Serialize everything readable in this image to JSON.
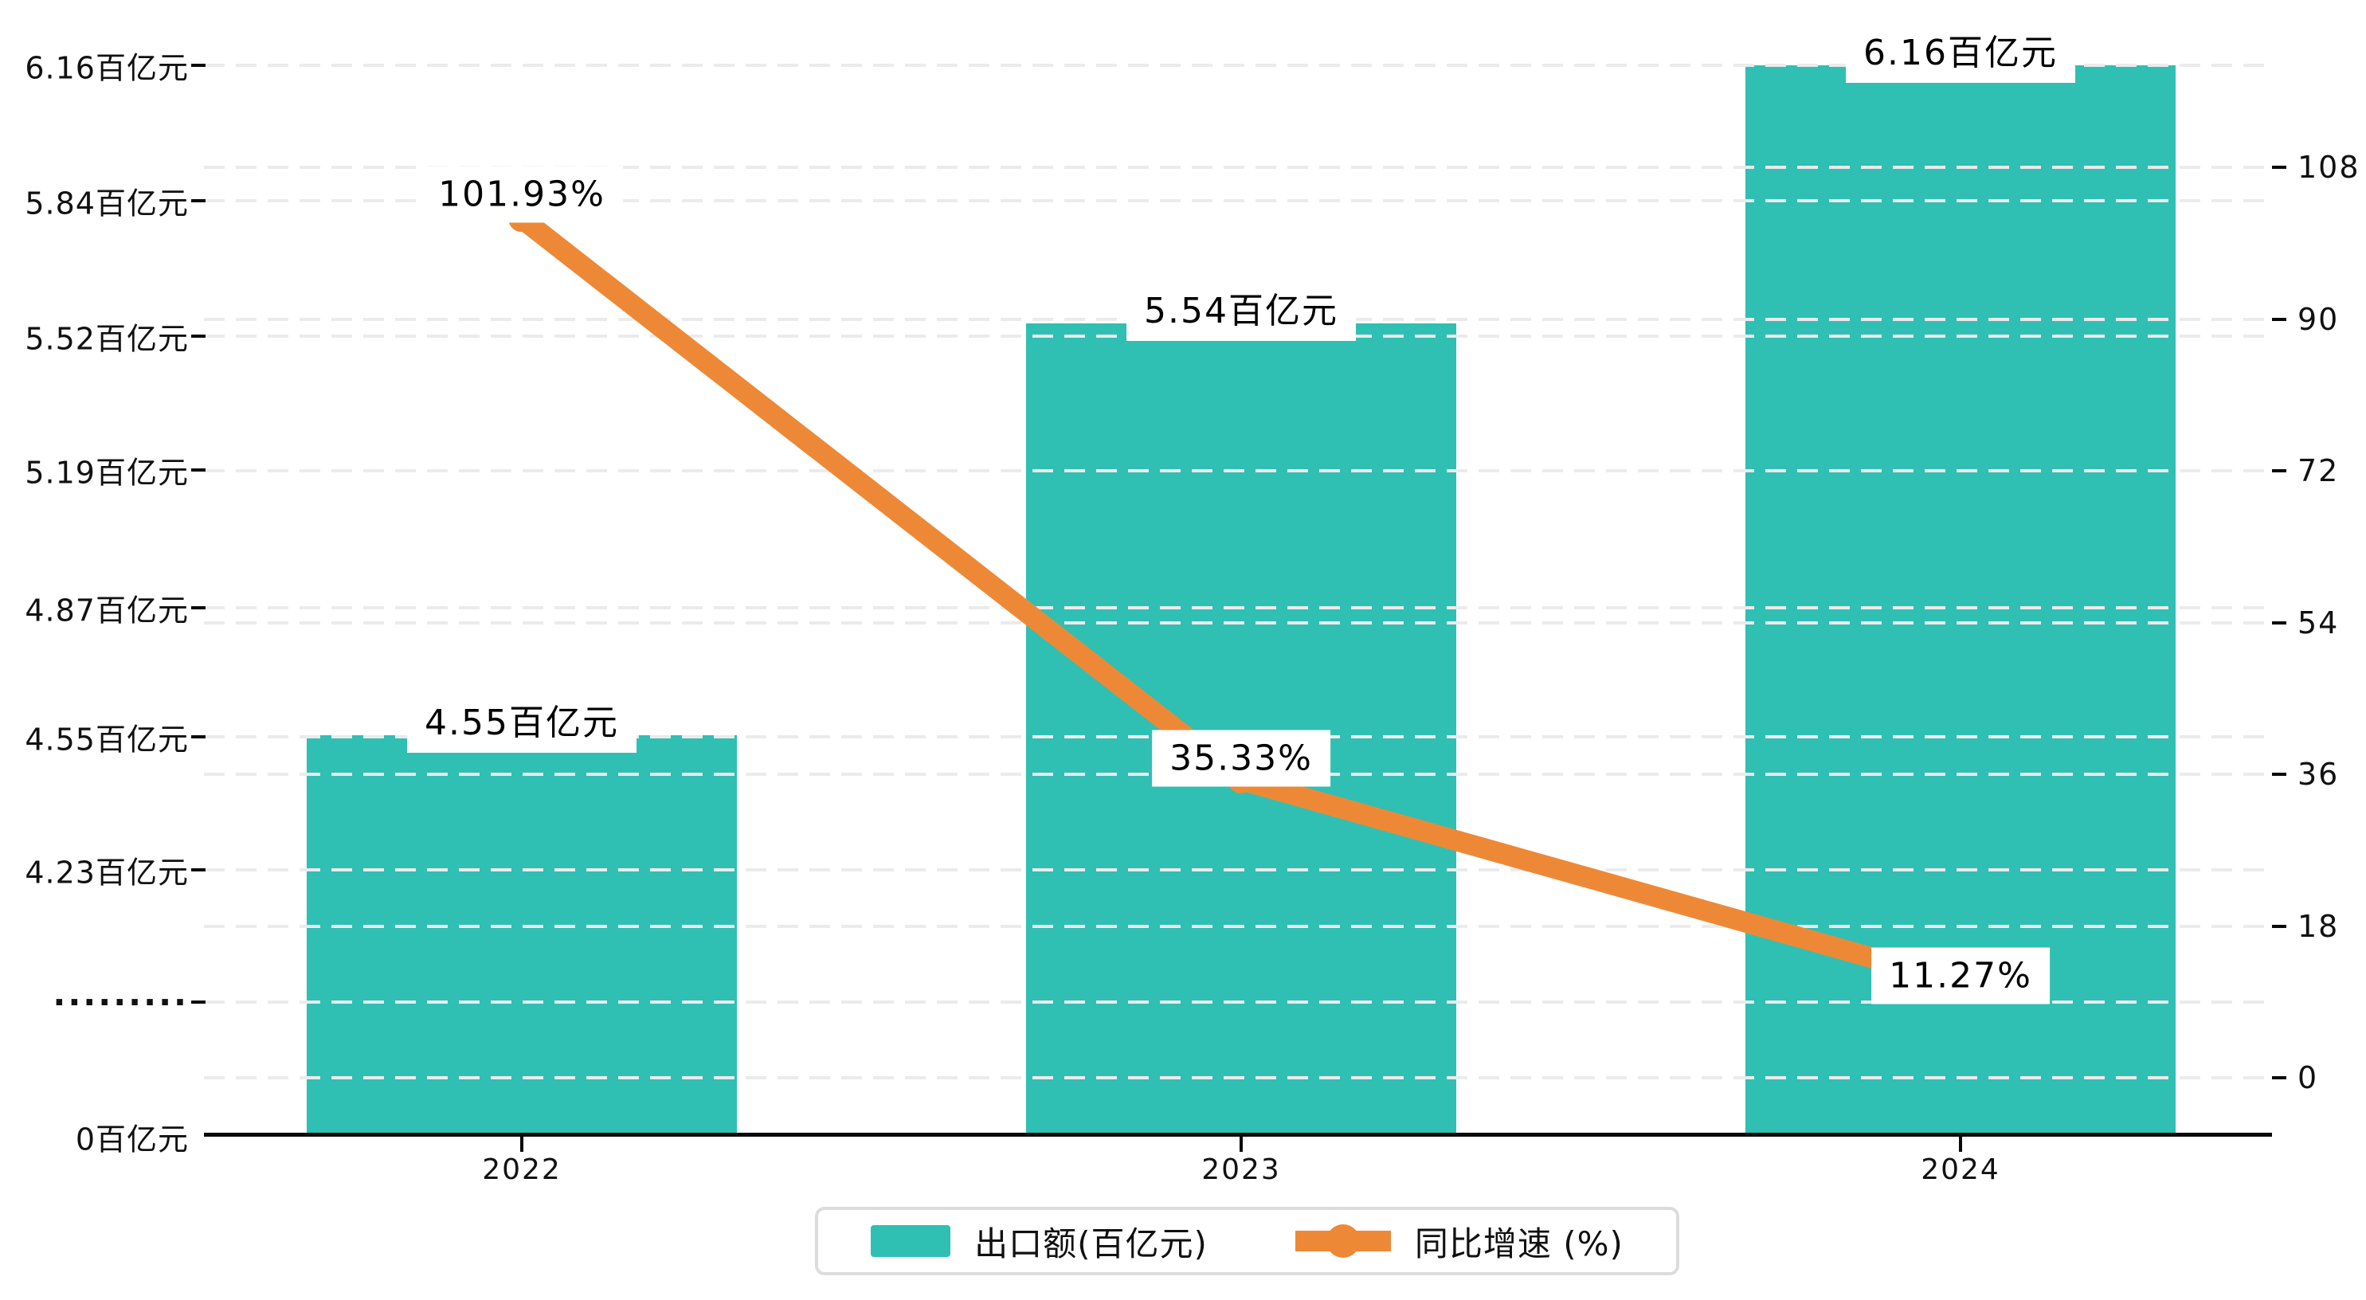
{
  "chart_data": {
    "type": "bar+line (dual y-axis, broken left axis)",
    "categories": [
      "2022",
      "2023",
      "2024"
    ],
    "series": [
      {
        "name": "出口额(百亿元)",
        "type": "bar",
        "axis": "left",
        "unit": "百亿元",
        "color": "#30BFB3",
        "values": [
          4.55,
          5.54,
          6.16
        ],
        "data_labels": [
          "4.55百亿元",
          "5.54百亿元",
          "6.16百亿元"
        ]
      },
      {
        "name": "同比增速 (%)",
        "type": "line",
        "axis": "right",
        "unit": "%",
        "color": "#ED8936",
        "values": [
          101.93,
          35.33,
          11.27
        ],
        "data_labels": [
          "101.93%",
          "35.33%",
          "11.27%"
        ]
      }
    ],
    "x_axis": {
      "tick_labels": [
        "2022",
        "2023",
        "2024"
      ]
    },
    "left_axis": {
      "tick_labels": [
        "6.16百亿元",
        "5.84百亿元",
        "5.52百亿元",
        "5.19百亿元",
        "4.87百亿元",
        "4.55百亿元",
        "4.23百亿元",
        "·········",
        "0百亿元"
      ],
      "axis_break": true,
      "visible_range": [
        0,
        6.16
      ]
    },
    "right_axis": {
      "tick_labels": [
        "108",
        "90",
        "72",
        "54",
        "36",
        "18",
        "0"
      ],
      "range": [
        0,
        108
      ]
    },
    "legend": {
      "position": "bottom",
      "items": [
        {
          "label": "出口额(百亿元)",
          "marker": "bar-swatch",
          "color": "#30BFB3"
        },
        {
          "label": "同比增速 (%)",
          "marker": "line-dot",
          "color": "#ED8936"
        }
      ]
    },
    "grid": true,
    "colors": {
      "bar": "#30BFB3",
      "line": "#ED8936",
      "axis": "#0A0A0A",
      "gridline": "#EBEBEB",
      "label_text": "#000000",
      "background": "#FFFFFF",
      "legend_border": "#DCDCDC"
    }
  }
}
